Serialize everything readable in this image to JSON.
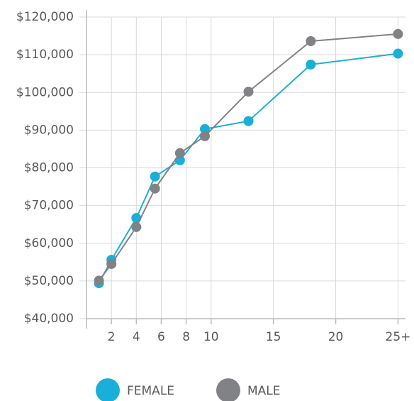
{
  "chart_data": {
    "type": "line",
    "x": [
      1,
      2,
      4,
      5.5,
      7.5,
      9.5,
      13,
      18,
      25
    ],
    "xlim": [
      0,
      25.6
    ],
    "xticks": [
      2,
      4,
      6,
      8,
      10,
      15,
      20,
      {
        "value": 25,
        "label": "25+"
      }
    ],
    "ylim": [
      40000,
      120000
    ],
    "yticks": [
      {
        "value": 40000,
        "label": "$40,000"
      },
      {
        "value": 50000,
        "label": "$50,000"
      },
      {
        "value": 60000,
        "label": "$60,000"
      },
      {
        "value": 70000,
        "label": "$70,000"
      },
      {
        "value": 80000,
        "label": "$80,000"
      },
      {
        "value": 90000,
        "label": "$90,000"
      },
      {
        "value": 100000,
        "label": "$100,000"
      },
      {
        "value": 110000,
        "label": "$110,000"
      },
      {
        "value": 120000,
        "label": "$120,000"
      }
    ],
    "grid": true,
    "legend": "bottom",
    "series": [
      {
        "name": "FEMALE",
        "color": "#1aafd8",
        "values": [
          49400,
          55600,
          66700,
          77700,
          82000,
          90300,
          92400,
          107400,
          110300
        ]
      },
      {
        "name": "MALE",
        "color": "#808285",
        "values": [
          50100,
          54500,
          64300,
          74500,
          83900,
          88400,
          100200,
          113600,
          115500
        ]
      }
    ]
  }
}
